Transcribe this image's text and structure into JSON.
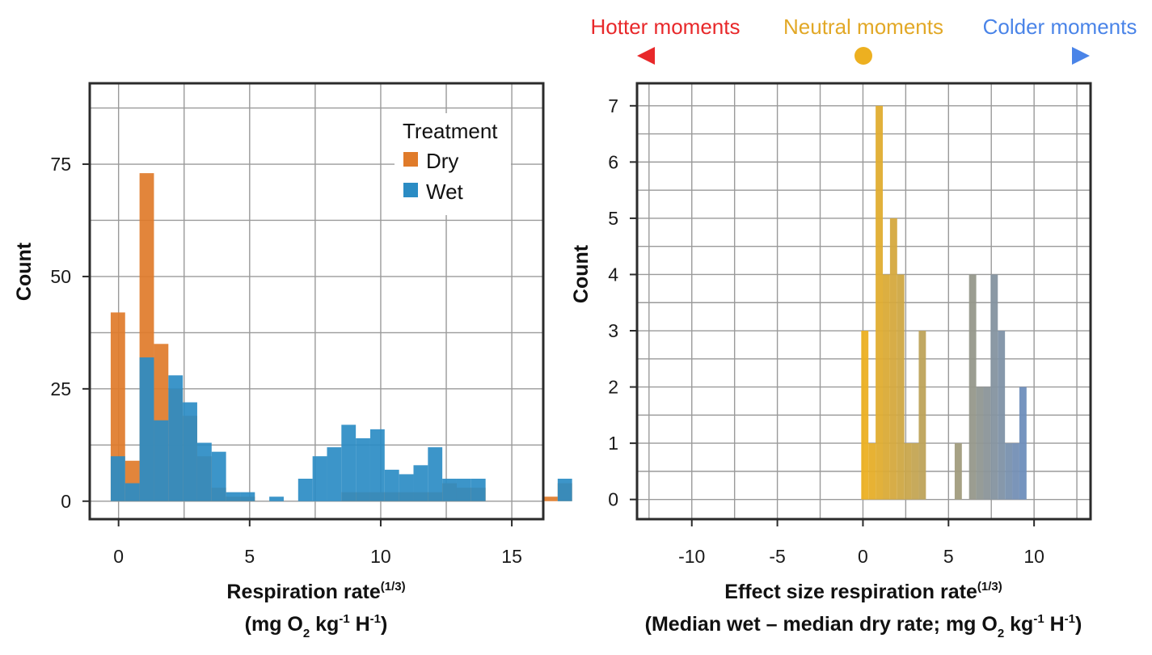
{
  "chart_data": [
    {
      "type": "histogram",
      "ylabel": "Count",
      "xlabel_line1": "Respiration rate",
      "xlabel_line1_sup": "(1/3)",
      "xlabel_line2_a": "(mg O",
      "xlabel_line2_sub": "2",
      "xlabel_line2_b": " kg",
      "xlabel_line2_sup1": "-1",
      "xlabel_line2_c": " H",
      "xlabel_line2_sup2": "-1",
      "xlabel_line2_d": ")",
      "xlim": [
        -1.1,
        16.2
      ],
      "ylim": [
        -4,
        93
      ],
      "xticks": [
        0,
        5,
        10,
        15
      ],
      "yticks": [
        0,
        25,
        50,
        75
      ],
      "xgrid": [
        0,
        2.5,
        5,
        7.5,
        10,
        12.5,
        15
      ],
      "ygrid": [
        0,
        12.5,
        25,
        37.5,
        50,
        62.5,
        75,
        87.5
      ],
      "bin_width": 0.55,
      "bin_start": -0.3,
      "legend": {
        "title": "Treatment",
        "position": "top-right"
      },
      "series": [
        {
          "name": "Dry",
          "color": "#E07B2A",
          "values": [
            42,
            9,
            73,
            35,
            25,
            19,
            10,
            3,
            1,
            1,
            0,
            0,
            0,
            0,
            0,
            0,
            2,
            2,
            2,
            2,
            2,
            2,
            2,
            4,
            3,
            3,
            0,
            0,
            0,
            0,
            1,
            4
          ]
        },
        {
          "name": "Wet",
          "color": "#2B8CC4",
          "values": [
            10,
            4,
            32,
            18,
            28,
            22,
            13,
            11,
            2,
            2,
            0,
            1,
            0,
            5,
            10,
            12,
            17,
            14,
            16,
            7,
            6,
            8,
            12,
            5,
            5,
            5,
            0,
            0,
            0,
            0,
            0,
            5
          ]
        }
      ]
    },
    {
      "type": "histogram",
      "ylabel": "Count",
      "xlabel_line1": "Effect size respiration rate",
      "xlabel_line1_sup": "(1/3)",
      "xlabel_line2_a": "(Median wet – median dry rate; mg O",
      "xlabel_line2_sub": "2",
      "xlabel_line2_b": " kg",
      "xlabel_line2_sup1": "-1",
      "xlabel_line2_c": " H",
      "xlabel_line2_sup2": "-1",
      "xlabel_line2_d": ")",
      "xlim": [
        -13.2,
        13.3
      ],
      "ylim": [
        -0.35,
        7.4
      ],
      "xticks": [
        -10,
        -5,
        0,
        5,
        10
      ],
      "yticks": [
        0,
        1,
        2,
        3,
        4,
        5,
        6,
        7
      ],
      "xgrid": [
        -12.5,
        -10,
        -7.5,
        -5,
        -2.5,
        0,
        2.5,
        5,
        7.5,
        10,
        12.5
      ],
      "ygrid": [
        0,
        0.5,
        1,
        1.5,
        2,
        2.5,
        3,
        3.5,
        4,
        4.5,
        5,
        5.5,
        6,
        6.5,
        7
      ],
      "bin_width": 0.42,
      "bin_start": -0.1,
      "values": [
        3,
        1,
        7,
        4,
        5,
        4,
        1,
        1,
        3,
        0,
        0,
        0,
        0,
        1,
        0,
        4,
        2,
        2,
        4,
        3,
        1,
        1,
        2
      ],
      "color_gradient": {
        "min_x": -12,
        "mid_x": 0,
        "max_x": 12,
        "hot": "#E8282A",
        "neutral": "#EDB020",
        "cold": "#4A84E8"
      }
    }
  ],
  "annotation": {
    "hotter": "Hotter moments",
    "neutral": "Neutral moments",
    "colder": "Colder moments",
    "hotter_color": "#E8282A",
    "neutral_color": "#E2A826",
    "colder_color": "#4A84E8"
  }
}
